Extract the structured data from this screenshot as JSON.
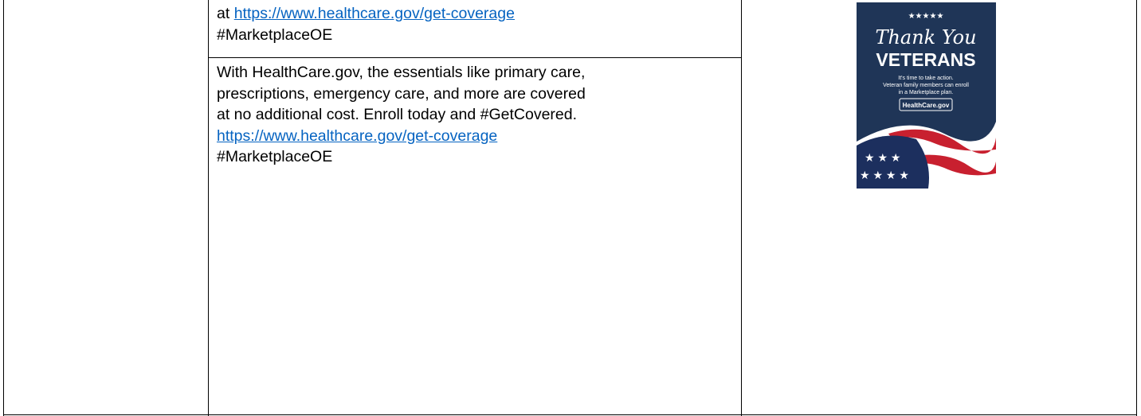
{
  "table": {
    "rows": [
      {
        "prefix": "at ",
        "link": "https://www.healthcare.gov/get-coverage",
        "hashtag": "#MarketplaceOE"
      },
      {
        "lines": [
          "With HealthCare.gov, the essentials like primary care,",
          "prescriptions, emergency care, and more are covered",
          "at no additional cost. Enroll today and #GetCovered."
        ],
        "link": "https://www.healthcare.gov/get-coverage",
        "hashtag": "#MarketplaceOE"
      }
    ]
  },
  "image": {
    "script_title": "Thank You",
    "title": "VETERANS",
    "lines": [
      "It's time to take action.",
      "Veteran family members can enroll",
      "in a Marketplace plan."
    ],
    "button": "HealthCare.gov"
  }
}
